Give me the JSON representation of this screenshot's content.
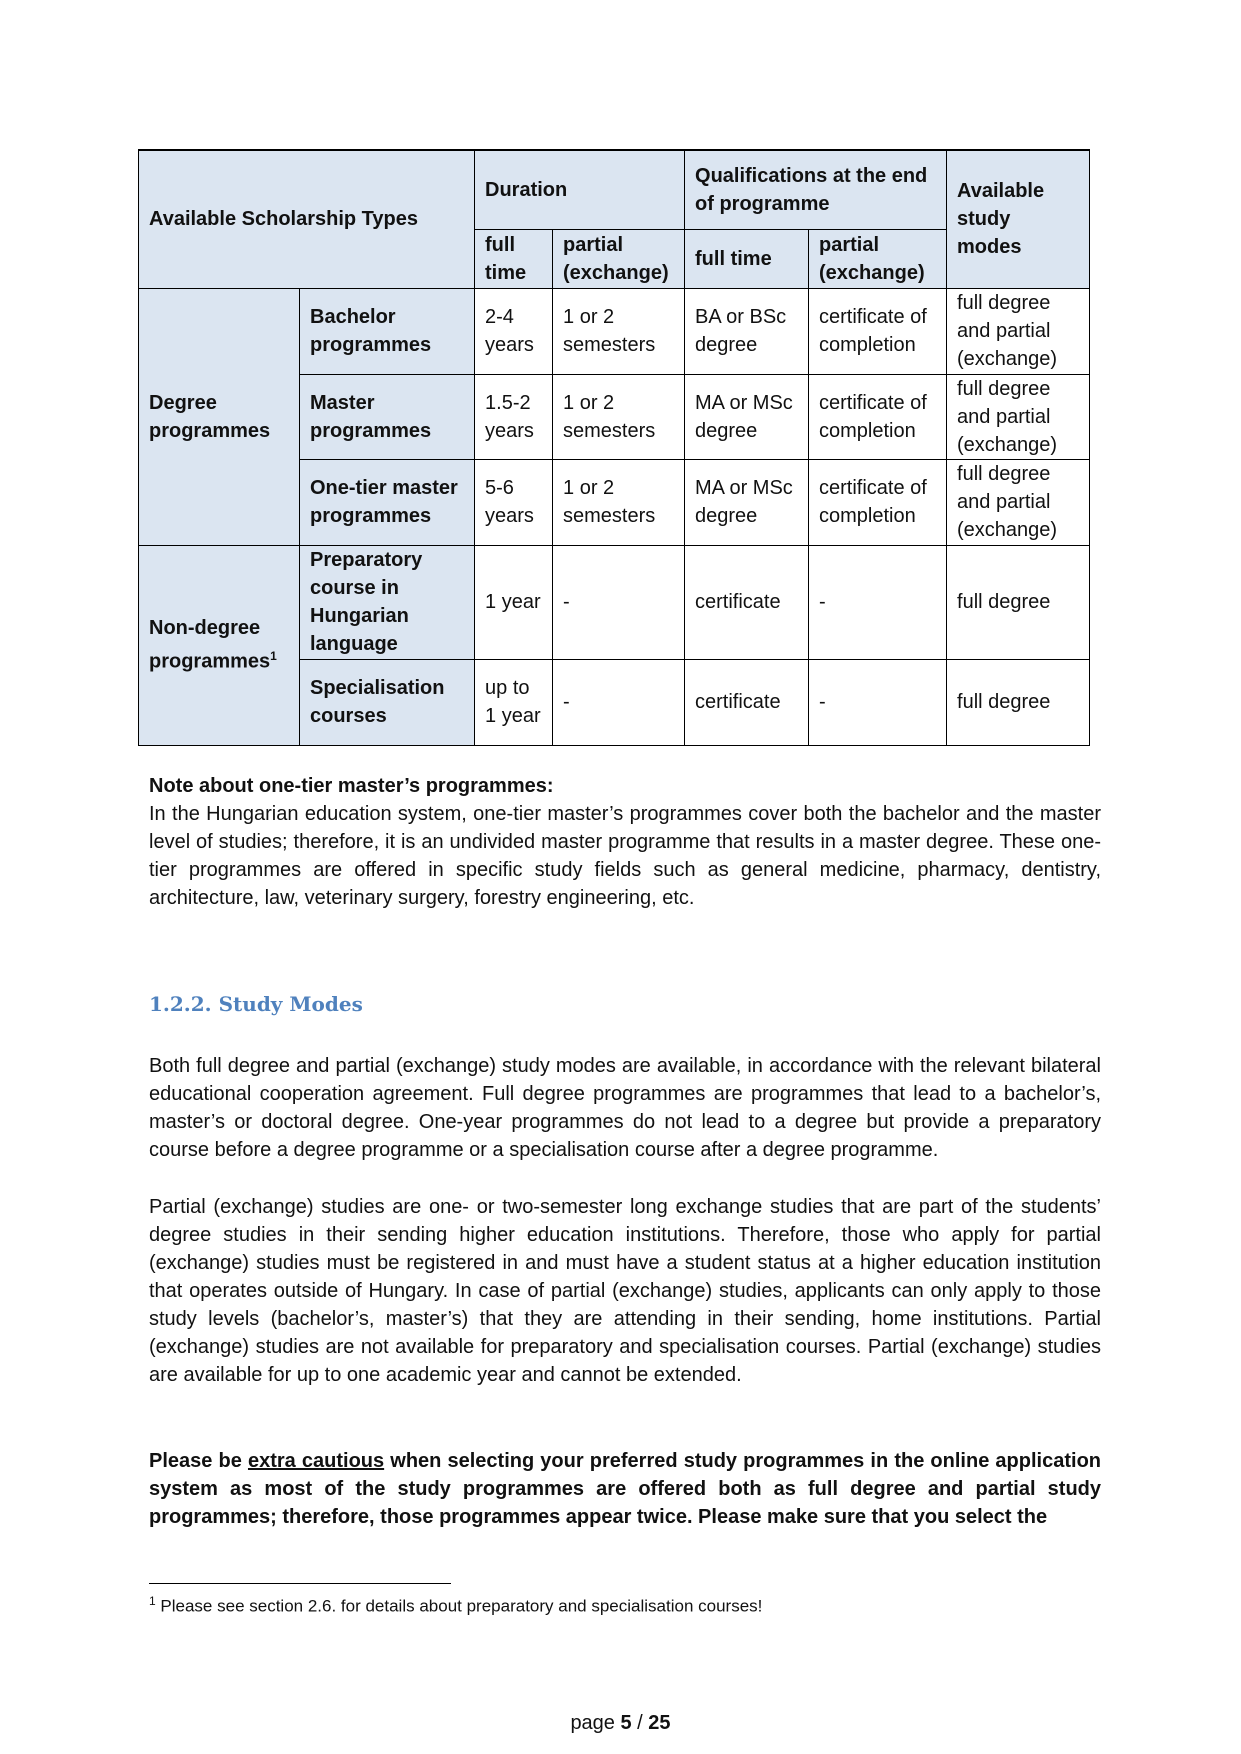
{
  "table": {
    "h_types": "Available Scholarship Types",
    "h_duration": "Duration",
    "h_qual": "Qualifications at the end of programme",
    "h_modes": "Available study modes",
    "h_full": "full time",
    "h_partial": "partial (exchange)",
    "h_qfull": "full time",
    "h_qpartial": "partial (exchange)",
    "degree": "Degree programmes",
    "nondegree": "Non-degree programmes",
    "fn_mark": "1",
    "rows": [
      {
        "type": "Bachelor programmes",
        "dfull": "2-4 years",
        "dpart": "1 or 2 semesters",
        "qfull": "BA or BSc degree",
        "qpart": "certificate of completion",
        "modes": "full degree and partial (exchange)"
      },
      {
        "type": "Master programmes",
        "dfull": "1.5-2 years",
        "dpart": "1 or 2 semesters",
        "qfull": "MA or MSc degree",
        "qpart": "certificate of completion",
        "modes": "full degree and partial (exchange)"
      },
      {
        "type": "One-tier master programmes",
        "dfull": "5-6 years",
        "dpart": "1 or 2 semesters",
        "qfull": "MA or MSc degree",
        "qpart": "certificate of completion",
        "modes": "full degree and partial (exchange)"
      },
      {
        "type": "Preparatory course in Hungarian language",
        "dfull": "1 year",
        "dpart": "-",
        "qfull": "certificate",
        "qpart": "-",
        "modes": "full degree"
      },
      {
        "type": "Specialisation courses",
        "dfull": "up to 1 year",
        "dpart": "-",
        "qfull": "certificate",
        "qpart": "-",
        "modes": "full degree"
      }
    ]
  },
  "note": {
    "title": "Note about one-tier master’s programmes:",
    "body": "In the Hungarian education system, one-tier master’s programmes cover both the bachelor and the master level of studies; therefore, it is an undivided master programme that results in a master degree. These one-tier programmes are offered in specific study fields such as general medicine, pharmacy, dentistry, architecture, law, veterinary surgery, forestry engineering, etc."
  },
  "heading": "1.2.2. Study Modes",
  "p1": "Both full degree and partial (exchange) study modes are available, in accordance with the relevant bilateral educational cooperation agreement. Full degree programmes are programmes that lead to a bachelor’s, master’s or doctoral degree. One-year programmes do not lead to a degree but provide a preparatory course before a degree programme or a specialisation course after a degree programme.",
  "p2": "Partial (exchange) studies are one- or two-semester long exchange studies that are part of the students’ degree studies in their sending higher education institutions. Therefore, those who apply for partial (exchange) studies must be registered in and must have a student status at a higher education institution that operates outside of Hungary. In case of partial (exchange) studies, applicants can only apply to those study levels (bachelor’s, master’s) that they are attending in their sending, home institutions. Partial (exchange) studies are not available for preparatory and specialisation courses. Partial (exchange) studies are available for up to one academic year and cannot be extended.",
  "p3": {
    "a": "Please be ",
    "u": "extra cautious",
    "b": " when selecting your preferred study programmes in the online application system as most of the study programmes are offered both as full degree and partial study programmes; therefore, those programmes appear twice. Please make sure that you select the"
  },
  "footnote": {
    "mark": "1",
    "text": " Please see section 2.6. for details about preparatory and specialisation courses!"
  },
  "page": {
    "prefix": "page ",
    "current": "5",
    "sep": " / ",
    "total": "25"
  }
}
